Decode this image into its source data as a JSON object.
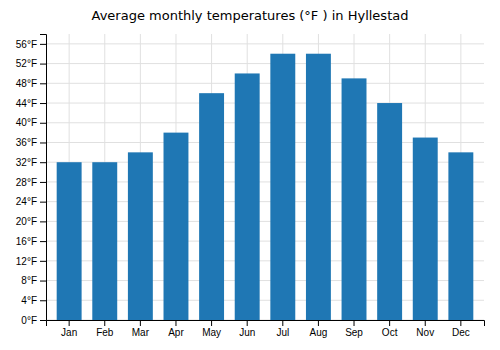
{
  "chart_data": {
    "type": "bar",
    "title": "Average monthly temperatures (°F ) in Hyllestad",
    "categories": [
      "Jan",
      "Feb",
      "Mar",
      "Apr",
      "May",
      "Jun",
      "Jul",
      "Aug",
      "Sep",
      "Oct",
      "Nov",
      "Dec"
    ],
    "values": [
      32,
      32,
      34,
      38,
      46,
      50,
      54,
      54,
      49,
      44,
      37,
      34
    ],
    "ylim": [
      0,
      58
    ],
    "yticks": [
      {
        "value": 0,
        "label": "0°F"
      },
      {
        "value": 4,
        "label": "4°F"
      },
      {
        "value": 8,
        "label": "8°F"
      },
      {
        "value": 12,
        "label": "12°F"
      },
      {
        "value": 16,
        "label": "16°F"
      },
      {
        "value": 20,
        "label": "20°F"
      },
      {
        "value": 24,
        "label": "24°F"
      },
      {
        "value": 28,
        "label": "28°F"
      },
      {
        "value": 32,
        "label": "32°F"
      },
      {
        "value": 36,
        "label": "36°F"
      },
      {
        "value": 40,
        "label": "40°F"
      },
      {
        "value": 44,
        "label": "44°F"
      },
      {
        "value": 48,
        "label": "48°F"
      },
      {
        "value": 52,
        "label": "52°F"
      },
      {
        "value": 56,
        "label": "56°F"
      }
    ],
    "grid": true
  }
}
